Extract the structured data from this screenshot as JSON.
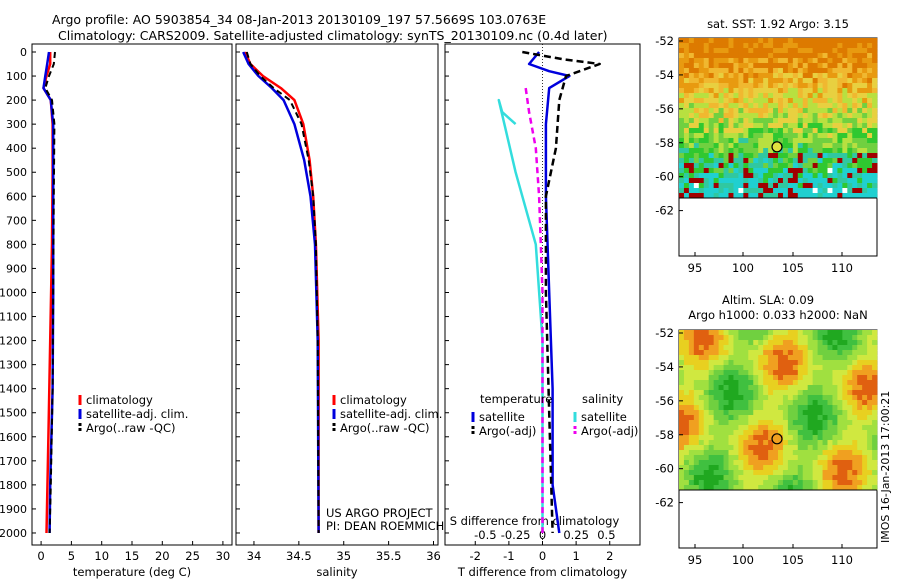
{
  "header": {
    "line1": "Argo profile: AO 5903854_34 08-Jan-2013 20130109_197 57.5669S 103.0763E",
    "line2": "Climatology: CARS2009. Satellite-adjusted climatology: synTS_20130109.nc (0.4d later)"
  },
  "colors": {
    "climatology": "#ff0000",
    "satellite": "#0000dd",
    "argo": "#000000",
    "sal_satellite": "#33dddd",
    "sal_argo": "#ee00ee"
  },
  "depth_ticks": [
    0,
    100,
    200,
    300,
    400,
    500,
    600,
    700,
    800,
    900,
    1000,
    1100,
    1200,
    1300,
    1400,
    1500,
    1600,
    1700,
    1800,
    1900,
    2000
  ],
  "chart_data": [
    {
      "type": "line",
      "xlabel": "temperature (deg C)",
      "xticks": [
        0,
        5,
        10,
        15,
        20,
        25,
        30
      ],
      "xlim": [
        -1.5,
        31.5
      ],
      "ylim": [
        0,
        2050
      ],
      "legend": [
        "climatology",
        "satellite-adj. clim.",
        "Argo(..raw -QC)"
      ],
      "series": [
        {
          "name": "climatology",
          "values": [
            [
              1.5,
              0
            ],
            [
              1.5,
              50
            ],
            [
              0.9,
              100
            ],
            [
              0.4,
              150
            ],
            [
              1.6,
              200
            ],
            [
              1.9,
              300
            ],
            [
              1.9,
              500
            ],
            [
              1.8,
              800
            ],
            [
              1.5,
              1200
            ],
            [
              1.2,
              1600
            ],
            [
              0.9,
              2000
            ]
          ]
        },
        {
          "name": "satellite-adj. clim.",
          "values": [
            [
              1.3,
              0
            ],
            [
              1.0,
              50
            ],
            [
              0.7,
              100
            ],
            [
              0.4,
              150
            ],
            [
              1.6,
              200
            ],
            [
              2.0,
              300
            ],
            [
              2.0,
              600
            ],
            [
              2.0,
              1000
            ],
            [
              1.9,
              1400
            ],
            [
              1.5,
              1800
            ],
            [
              1.4,
              2000
            ]
          ]
        },
        {
          "name": "Argo(..raw -QC)",
          "values": [
            [
              2.3,
              0
            ],
            [
              2.1,
              50
            ],
            [
              1.3,
              100
            ],
            [
              0.7,
              150
            ],
            [
              1.8,
              200
            ],
            [
              2.2,
              300
            ],
            [
              2.1,
              600
            ],
            [
              2.0,
              1000
            ],
            [
              1.9,
              1400
            ],
            [
              1.6,
              1800
            ],
            [
              1.4,
              2000
            ]
          ]
        }
      ]
    },
    {
      "type": "line",
      "xlabel": "salinity",
      "xticks": [
        34,
        34.5,
        35,
        35.5,
        36
      ],
      "xlim": [
        33.8,
        36.05
      ],
      "ylim": [
        0,
        2050
      ],
      "legend": [
        "climatology",
        "satellite-adj. clim.",
        "Argo(..raw -QC)"
      ],
      "notes": [
        "US ARGO PROJECT",
        "PI: DEAN ROEMMICH"
      ],
      "series": [
        {
          "name": "climatology",
          "values": [
            [
              33.9,
              0
            ],
            [
              33.96,
              50
            ],
            [
              34.1,
              100
            ],
            [
              34.3,
              150
            ],
            [
              34.45,
              200
            ],
            [
              34.55,
              300
            ],
            [
              34.62,
              450
            ],
            [
              34.66,
              600
            ],
            [
              34.69,
              800
            ],
            [
              34.72,
              1200
            ],
            [
              34.72,
              2000
            ]
          ]
        },
        {
          "name": "satellite-adj. clim.",
          "values": [
            [
              33.88,
              0
            ],
            [
              33.94,
              50
            ],
            [
              34.05,
              100
            ],
            [
              34.2,
              150
            ],
            [
              34.33,
              200
            ],
            [
              34.45,
              300
            ],
            [
              34.56,
              450
            ],
            [
              34.63,
              600
            ],
            [
              34.68,
              800
            ],
            [
              34.71,
              1200
            ],
            [
              34.72,
              2000
            ]
          ]
        },
        {
          "name": "Argo(..raw -QC)",
          "values": [
            [
              33.92,
              0
            ],
            [
              33.96,
              50
            ],
            [
              34.07,
              100
            ],
            [
              34.22,
              150
            ],
            [
              34.4,
              200
            ],
            [
              34.53,
              300
            ],
            [
              34.61,
              450
            ],
            [
              34.66,
              600
            ],
            [
              34.69,
              800
            ],
            [
              34.71,
              1200
            ],
            [
              34.72,
              2000
            ]
          ]
        }
      ]
    },
    {
      "type": "line",
      "xlabel": "T difference from climatology",
      "xticks": [
        -2,
        -1,
        0,
        1,
        2
      ],
      "xlim": [
        -2.9,
        2.9
      ],
      "top_label": "S difference from climatology",
      "top_ticks": [
        "-0.5",
        "-0.25",
        "0",
        "0.25",
        "0.5"
      ],
      "ylim": [
        0,
        2050
      ],
      "legend": {
        "temperature": [
          "satellite",
          "Argo(-adj)"
        ],
        "salinity": [
          "satellite",
          "Argo(-adj)"
        ]
      },
      "legend_titles": [
        "temperature",
        "salinity"
      ],
      "series": [
        {
          "name": "temperature satellite",
          "values": [
            [
              -0.1,
              0
            ],
            [
              -0.4,
              50
            ],
            [
              0.2,
              80
            ],
            [
              0.8,
              100
            ],
            [
              0.2,
              150
            ],
            [
              0.1,
              300
            ],
            [
              0.1,
              600
            ],
            [
              0.2,
              1000
            ],
            [
              0.3,
              1400
            ],
            [
              0.3,
              1800
            ],
            [
              0.5,
              2000
            ]
          ]
        },
        {
          "name": "temperature Argo(-adj)",
          "values": [
            [
              -0.6,
              0
            ],
            [
              0.6,
              30
            ],
            [
              1.7,
              50
            ],
            [
              0.7,
              100
            ],
            [
              0.5,
              200
            ],
            [
              0.4,
              400
            ],
            [
              0.1,
              600
            ],
            [
              0.1,
              1000
            ],
            [
              0.2,
              1500
            ],
            [
              0.3,
              2000
            ]
          ]
        },
        {
          "name": "salinity satellite",
          "values": [
            [
              -0.8,
              300
            ],
            [
              -1.2,
              250
            ],
            [
              -1.3,
              200
            ],
            [
              -0.8,
              500
            ],
            [
              -0.2,
              800
            ],
            [
              0.0,
              1200
            ],
            [
              0.0,
              2000
            ]
          ]
        },
        {
          "name": "salinity Argo(-adj)",
          "values": [
            [
              -0.5,
              150
            ],
            [
              -0.4,
              250
            ],
            [
              -0.2,
              400
            ],
            [
              -0.1,
              600
            ],
            [
              0.0,
              1000
            ],
            [
              0.0,
              2000
            ]
          ]
        }
      ]
    }
  ],
  "maps": [
    {
      "title": "sat. SST: 1.92 Argo: 3.15",
      "xticks": [
        "95",
        "100",
        "105",
        "110"
      ],
      "yticks": [
        "-52",
        "-54",
        "-56",
        "-58",
        "-60",
        "-62"
      ]
    },
    {
      "title1": "Altim. SLA: 0.09",
      "title2": "Argo h1000: 0.033 h2000: NaN",
      "xticks": [
        "95",
        "100",
        "105",
        "110"
      ],
      "yticks": [
        "-52",
        "-54",
        "-56",
        "-58",
        "-60",
        "-62"
      ]
    }
  ],
  "footer_stamp": "IMOS 16-Jan-2013 17:00:21"
}
